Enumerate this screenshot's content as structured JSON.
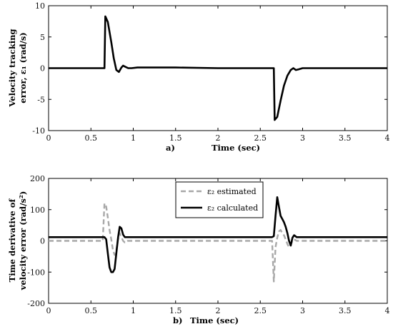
{
  "chart_data": [
    {
      "type": "line",
      "panel": "a)",
      "ylabel_line1": "Velocity tracking",
      "ylabel_line2": "error, ε₁ (rad/s)",
      "xlabel": "Time (sec)",
      "xlim": [
        0,
        4
      ],
      "ylim": [
        -10,
        10
      ],
      "xticks": [
        "0",
        "0.5",
        "1",
        "1.5",
        "2",
        "2.5",
        "3",
        "3.5",
        "4"
      ],
      "yticks": [
        "10",
        "5",
        "0",
        "-5",
        "-10"
      ],
      "grid": false,
      "series": [
        {
          "color": "#000000",
          "style": "solid",
          "x": [
            0,
            0.66,
            0.67,
            0.7,
            0.74,
            0.77,
            0.8,
            0.83,
            0.86,
            0.88,
            0.91,
            0.94,
            0.98,
            1.05,
            1.5,
            2.0,
            2.5,
            2.66,
            2.67,
            2.7,
            2.74,
            2.78,
            2.82,
            2.86,
            2.89,
            2.92,
            2.95,
            3.0,
            3.5,
            4.0
          ],
          "y": [
            0,
            0,
            8.3,
            7.4,
            4.2,
            1.6,
            -0.3,
            -0.6,
            0.1,
            0.4,
            0.2,
            0.0,
            0.0,
            0.1,
            0.1,
            0.0,
            0.0,
            0.0,
            -8.3,
            -7.8,
            -5.2,
            -2.8,
            -1.2,
            -0.3,
            0.0,
            -0.3,
            -0.2,
            0.0,
            0.0,
            0.0
          ]
        }
      ]
    },
    {
      "type": "line",
      "panel": "b)",
      "ylabel_line1": "Time derivative of",
      "ylabel_line2": "velocity error (rad/s²)",
      "xlabel": "Time (sec)",
      "xlim": [
        0,
        4
      ],
      "ylim": [
        -200,
        200
      ],
      "xticks": [
        "0",
        "0.5",
        "1",
        "1.5",
        "2",
        "2.5",
        "3",
        "3.5",
        "4"
      ],
      "yticks": [
        "200",
        "100",
        "0",
        "-100",
        "-200"
      ],
      "grid": false,
      "legend": "top-center",
      "series": [
        {
          "name": "ε₂ estimated",
          "color": "#a8a8a8",
          "style": "dashed",
          "x": [
            0,
            0.64,
            0.66,
            0.68,
            0.7,
            0.72,
            0.74,
            0.76,
            0.78,
            0.8,
            0.82,
            0.84,
            0.86,
            0.88,
            0.9,
            0.93,
            0.97,
            1.0,
            2.64,
            2.66,
            2.68,
            2.7,
            2.72,
            2.74,
            2.76,
            2.78,
            2.8,
            2.82,
            2.84,
            2.86,
            2.88,
            2.9,
            2.93,
            3.0,
            4.0
          ],
          "y": [
            0,
            0,
            120,
            110,
            75,
            35,
            5,
            -30,
            -45,
            -30,
            5,
            25,
            12,
            0,
            -5,
            0,
            0,
            0,
            0,
            -130,
            -20,
            10,
            30,
            35,
            25,
            18,
            5,
            -10,
            -20,
            -12,
            0,
            5,
            0,
            0,
            0
          ]
        },
        {
          "name": "ε₂ calculated",
          "color": "#000000",
          "style": "solid",
          "x": [
            0,
            0.66,
            0.68,
            0.7,
            0.72,
            0.74,
            0.76,
            0.78,
            0.8,
            0.82,
            0.84,
            0.86,
            0.88,
            0.9,
            0.93,
            0.97,
            1.0,
            2.64,
            2.66,
            2.68,
            2.7,
            2.72,
            2.74,
            2.76,
            2.78,
            2.8,
            2.82,
            2.84,
            2.86,
            2.88,
            2.9,
            2.93,
            3.0,
            4.0
          ],
          "y": [
            12,
            12,
            5,
            -40,
            -85,
            -100,
            -100,
            -90,
            -40,
            10,
            45,
            40,
            20,
            12,
            12,
            12,
            12,
            12,
            15,
            80,
            140,
            110,
            80,
            70,
            60,
            45,
            25,
            0,
            -15,
            10,
            18,
            12,
            12,
            12
          ]
        }
      ]
    }
  ]
}
